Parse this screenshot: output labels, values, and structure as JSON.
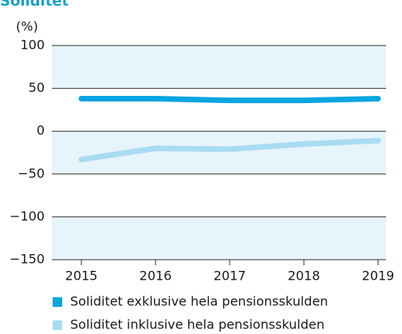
{
  "chart_data": {
    "type": "line",
    "title": "Soliditet",
    "y_unit_label": "(%)",
    "categories": [
      "2015",
      "2016",
      "2017",
      "2018",
      "2019"
    ],
    "series": [
      {
        "name": "Soliditet exklusive hela pensionsskulden",
        "color": "#0aa5e0",
        "values": [
          38,
          38,
          36,
          36,
          38
        ]
      },
      {
        "name": "Soliditet inklusive hela pensionsskulden",
        "color": "#a7dcf3",
        "values": [
          -33,
          -20,
          -21,
          -15,
          -11
        ]
      }
    ],
    "ylim": [
      -150,
      100
    ],
    "yticks": [
      100,
      50,
      0,
      {
        "value": -50,
        "label": "−50"
      },
      {
        "value": -100,
        "label": "−100"
      },
      {
        "value": -150,
        "label": "−150"
      }
    ],
    "grid": true,
    "band_color": "#e6f4fb"
  }
}
